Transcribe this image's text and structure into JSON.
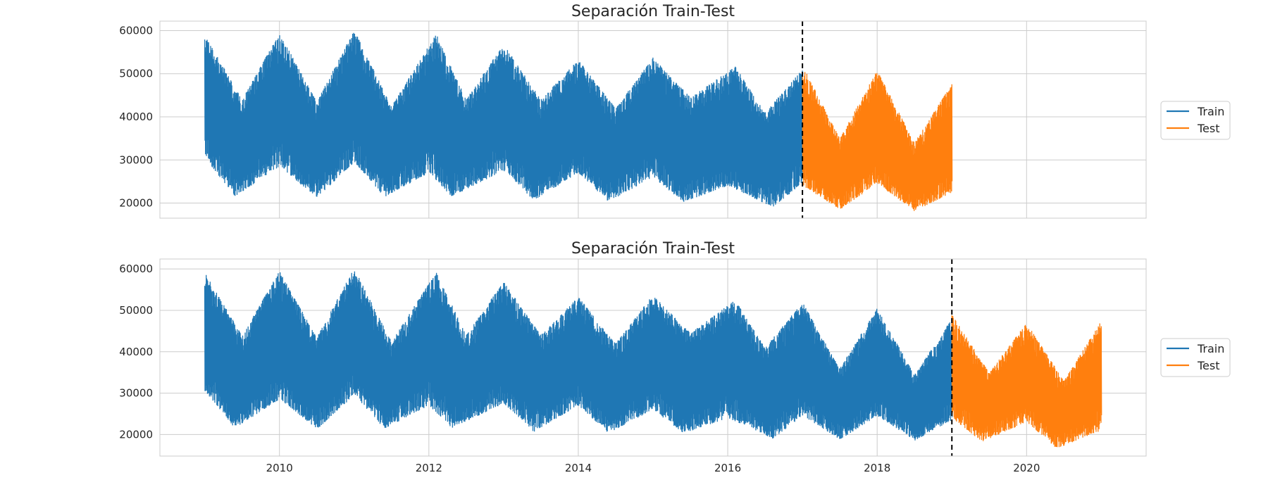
{
  "chart_data": [
    {
      "type": "line",
      "title": "Separación Train-Test",
      "xlabel": "",
      "ylabel": "",
      "xlim": [
        2008.4,
        2021.6
      ],
      "ylim": [
        16500,
        62200
      ],
      "grid": true,
      "x_ticks": [
        2010,
        2012,
        2014,
        2016,
        2018,
        2020
      ],
      "x_tick_labels": [
        "",
        "",
        "",
        "",
        "",
        ""
      ],
      "y_ticks": [
        20000,
        30000,
        40000,
        50000,
        60000
      ],
      "y_tick_labels": [
        "20000",
        "30000",
        "40000",
        "50000",
        "60000"
      ],
      "split_line_x": 2017.0,
      "legend": {
        "placement": "outside-right",
        "entries": [
          "Train",
          "Test"
        ]
      },
      "series": [
        {
          "name": "Train",
          "color": "#1f77b4",
          "x_range": [
            2009.0,
            2017.0
          ],
          "peaks": [
            [
              2009.0,
              59200
            ],
            [
              2010.0,
              59500
            ],
            [
              2011.0,
              60200
            ],
            [
              2012.1,
              59300
            ],
            [
              2013.0,
              57000
            ],
            [
              2014.0,
              53300
            ],
            [
              2015.0,
              53800
            ],
            [
              2016.1,
              51700
            ],
            [
              2017.0,
              51000
            ]
          ],
          "summer_highs": [
            [
              2009.5,
              44000
            ],
            [
              2010.5,
              43500
            ],
            [
              2011.5,
              42500
            ],
            [
              2012.5,
              44000
            ],
            [
              2013.5,
              44000
            ],
            [
              2014.5,
              42000
            ],
            [
              2015.5,
              44500
            ],
            [
              2016.5,
              41000
            ]
          ],
          "lows": [
            [
              2009.4,
              21500
            ],
            [
              2010.5,
              21200
            ],
            [
              2011.4,
              21400
            ],
            [
              2012.3,
              21500
            ],
            [
              2013.4,
              20600
            ],
            [
              2014.4,
              20300
            ],
            [
              2015.4,
              20200
            ],
            [
              2016.6,
              19000
            ]
          ],
          "winter_lows": [
            [
              2009.0,
              30500
            ],
            [
              2010.0,
              28500
            ],
            [
              2011.0,
              29500
            ],
            [
              2012.0,
              27000
            ],
            [
              2013.0,
              27500
            ],
            [
              2014.0,
              27000
            ],
            [
              2015.0,
              26000
            ],
            [
              2016.0,
              24000
            ],
            [
              2017.0,
              24500
            ]
          ]
        },
        {
          "name": "Test",
          "color": "#ff7f0e",
          "x_range": [
            2017.0,
            2019.0
          ],
          "peaks": [
            [
              2017.0,
              52000
            ],
            [
              2018.0,
              50800
            ],
            [
              2019.0,
              47700
            ]
          ],
          "summer_highs": [
            [
              2017.5,
              35000
            ],
            [
              2018.5,
              34000
            ]
          ],
          "lows": [
            [
              2017.5,
              18500
            ],
            [
              2018.5,
              18000
            ]
          ],
          "winter_lows": [
            [
              2017.0,
              24000
            ],
            [
              2018.0,
              24500
            ],
            [
              2019.0,
              22500
            ]
          ]
        }
      ]
    },
    {
      "type": "line",
      "title": "Separación Train-Test",
      "xlabel": "",
      "ylabel": "",
      "xlim": [
        2008.4,
        2021.6
      ],
      "ylim": [
        14800,
        62400
      ],
      "grid": true,
      "x_ticks": [
        2010,
        2012,
        2014,
        2016,
        2018,
        2020
      ],
      "x_tick_labels": [
        "2010",
        "2012",
        "2014",
        "2016",
        "2018",
        "2020"
      ],
      "y_ticks": [
        20000,
        30000,
        40000,
        50000,
        60000
      ],
      "y_tick_labels": [
        "20000",
        "30000",
        "40000",
        "50000",
        "60000"
      ],
      "split_line_x": 2019.0,
      "legend": {
        "placement": "outside-right",
        "entries": [
          "Train",
          "Test"
        ]
      },
      "series": [
        {
          "name": "Train",
          "color": "#1f77b4",
          "x_range": [
            2009.0,
            2019.0
          ],
          "peaks": [
            [
              2009.0,
              59200
            ],
            [
              2010.0,
              59500
            ],
            [
              2011.0,
              60200
            ],
            [
              2012.1,
              59300
            ],
            [
              2013.0,
              57000
            ],
            [
              2014.0,
              53300
            ],
            [
              2015.0,
              53800
            ],
            [
              2016.1,
              52500
            ],
            [
              2017.0,
              52000
            ],
            [
              2018.0,
              50500
            ],
            [
              2019.0,
              48000
            ]
          ],
          "summer_highs": [
            [
              2009.5,
              44000
            ],
            [
              2010.5,
              43500
            ],
            [
              2011.5,
              42500
            ],
            [
              2012.5,
              44000
            ],
            [
              2013.5,
              44000
            ],
            [
              2014.5,
              42000
            ],
            [
              2015.5,
              44500
            ],
            [
              2016.5,
              41000
            ],
            [
              2017.5,
              36000
            ],
            [
              2018.5,
              34500
            ]
          ],
          "lows": [
            [
              2009.4,
              21500
            ],
            [
              2010.5,
              21200
            ],
            [
              2011.4,
              21400
            ],
            [
              2012.3,
              21500
            ],
            [
              2013.4,
              20600
            ],
            [
              2014.4,
              20300
            ],
            [
              2015.4,
              20200
            ],
            [
              2016.6,
              19000
            ],
            [
              2017.5,
              18800
            ],
            [
              2018.5,
              18500
            ]
          ],
          "winter_lows": [
            [
              2009.0,
              30500
            ],
            [
              2010.0,
              28500
            ],
            [
              2011.0,
              29500
            ],
            [
              2012.0,
              27000
            ],
            [
              2013.0,
              27500
            ],
            [
              2014.0,
              27000
            ],
            [
              2015.0,
              26000
            ],
            [
              2016.0,
              24000
            ],
            [
              2017.0,
              24500
            ],
            [
              2018.0,
              24500
            ],
            [
              2019.0,
              23500
            ]
          ]
        },
        {
          "name": "Test",
          "color": "#ff7f0e",
          "x_range": [
            2019.0,
            2021.0
          ],
          "peaks": [
            [
              2019.0,
              49000
            ],
            [
              2020.0,
              47000
            ],
            [
              2021.0,
              47500
            ]
          ],
          "summer_highs": [
            [
              2019.5,
              35000
            ],
            [
              2020.5,
              33000
            ]
          ],
          "lows": [
            [
              2019.4,
              18200
            ],
            [
              2020.4,
              16600
            ]
          ],
          "winter_lows": [
            [
              2019.0,
              24000
            ],
            [
              2020.0,
              23000
            ],
            [
              2021.0,
              21000
            ]
          ]
        }
      ]
    }
  ]
}
